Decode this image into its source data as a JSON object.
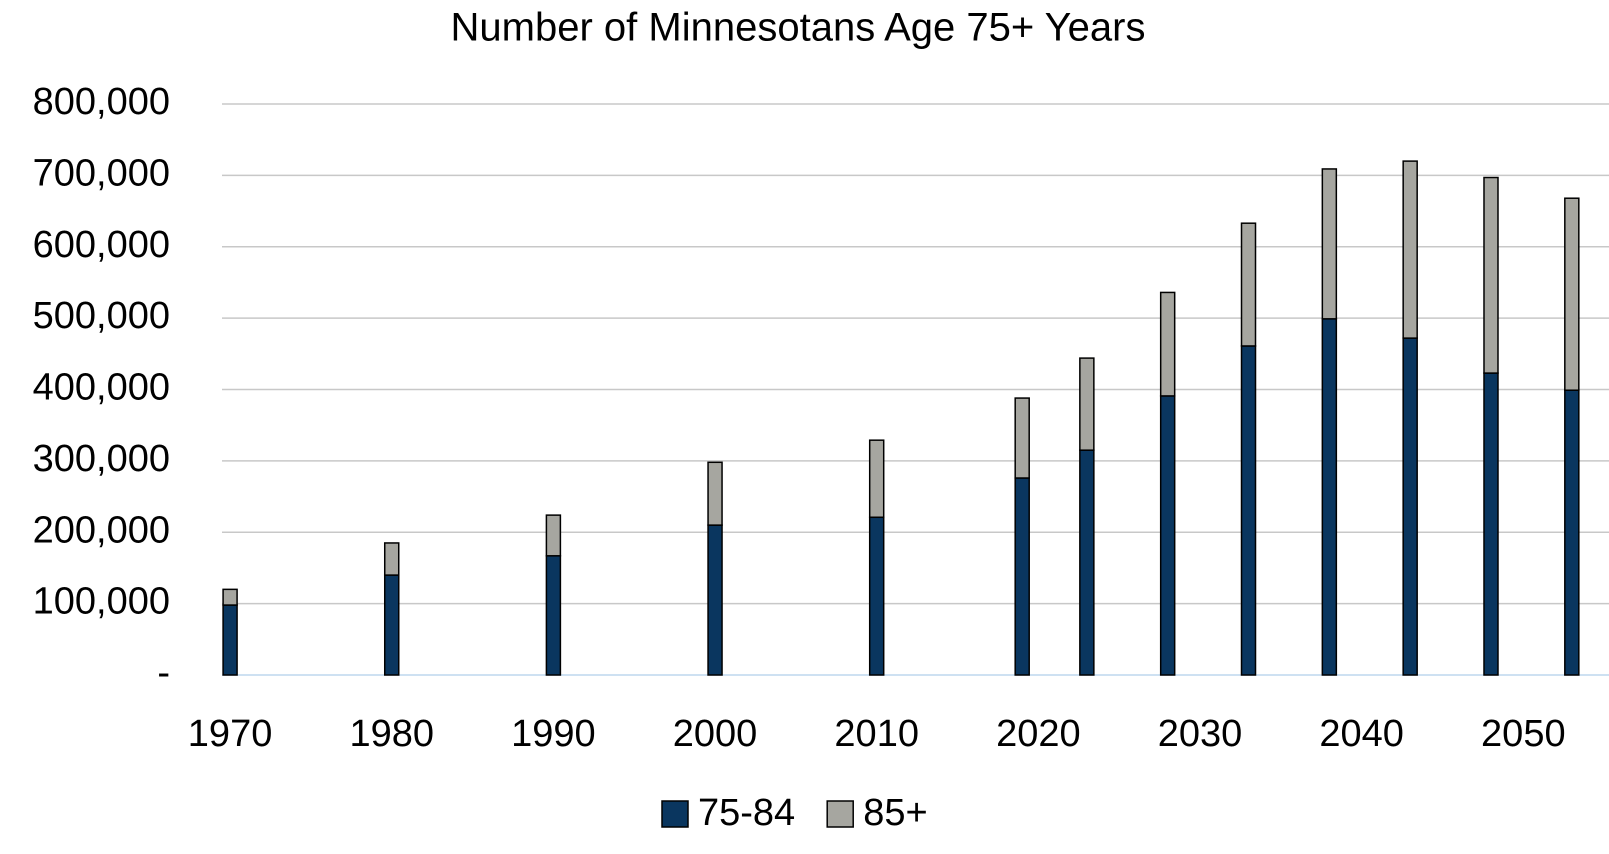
{
  "chart_data": {
    "type": "stacked_bar",
    "title": "Number of Minnesotans Age 75+ Years",
    "x": [
      1970,
      1980,
      1990,
      2000,
      2010,
      2019,
      2023,
      2028,
      2033,
      2038,
      2043,
      2048,
      2053
    ],
    "series": [
      {
        "name": "75-84",
        "color": "#0a365f",
        "values": [
          98000,
          140000,
          167000,
          210000,
          221000,
          276000,
          315000,
          391000,
          461000,
          499000,
          472000,
          423000,
          399000
        ]
      },
      {
        "name": "85+",
        "color": "#a6a6a0",
        "values": [
          22000,
          45000,
          57000,
          88000,
          108000,
          112000,
          129000,
          145000,
          172000,
          210000,
          248000,
          274000,
          269000
        ]
      }
    ],
    "xlim": [
      1969.5,
      2055.3
    ],
    "xticks": [
      1970,
      1980,
      1990,
      2000,
      2010,
      2020,
      2030,
      2040,
      2050
    ],
    "ylim": [
      0,
      800000
    ],
    "yticks": [
      {
        "value": 0,
        "label": "-"
      },
      {
        "value": 100000,
        "label": "100,000"
      },
      {
        "value": 200000,
        "label": "200,000"
      },
      {
        "value": 300000,
        "label": "300,000"
      },
      {
        "value": 400000,
        "label": "400,000"
      },
      {
        "value": 500000,
        "label": "500,000"
      },
      {
        "value": 600000,
        "label": "600,000"
      },
      {
        "value": 700000,
        "label": "700,000"
      },
      {
        "value": 800000,
        "label": "800,000"
      }
    ],
    "grid": true,
    "legend": "bottom"
  }
}
